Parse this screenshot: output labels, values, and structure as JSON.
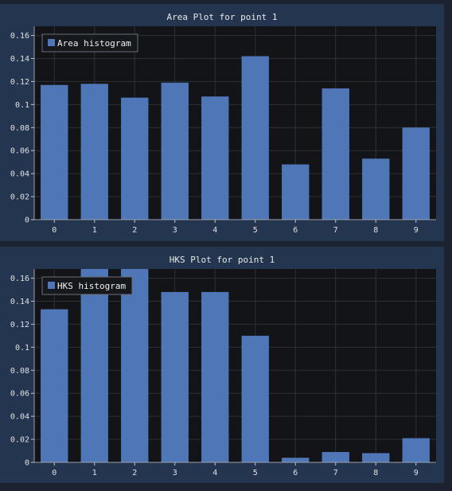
{
  "chart_data": [
    {
      "type": "bar",
      "title": "Area Plot for point 1",
      "categories": [
        "0",
        "1",
        "2",
        "3",
        "4",
        "5",
        "6",
        "7",
        "8",
        "9"
      ],
      "series": [
        {
          "name": "Area histogram",
          "values": [
            0.117,
            0.118,
            0.106,
            0.119,
            0.107,
            0.142,
            0.048,
            0.114,
            0.053,
            0.08
          ]
        }
      ],
      "ylim": [
        0,
        0.168
      ],
      "yticks": [
        "0",
        "0.02",
        "0.04",
        "0.06",
        "0.08",
        "0.1",
        "0.12",
        "0.14",
        "0.16"
      ],
      "grid": true,
      "legend_position": "top-left",
      "colors": {
        "bar": "#4f77b8",
        "plot_bg": "#121417",
        "panel_bg": "#243550",
        "grid": "#2c3038"
      }
    },
    {
      "type": "bar",
      "title": "HKS Plot for point 1",
      "categories": [
        "0",
        "1",
        "2",
        "3",
        "4",
        "5",
        "6",
        "7",
        "8",
        "9"
      ],
      "series": [
        {
          "name": "HKS histogram",
          "values": [
            0.133,
            0.168,
            0.168,
            0.148,
            0.148,
            0.11,
            0.004,
            0.009,
            0.008,
            0.021
          ]
        }
      ],
      "ylim": [
        0,
        0.168
      ],
      "yticks": [
        "0",
        "0.02",
        "0.04",
        "0.06",
        "0.08",
        "0.1",
        "0.12",
        "0.14",
        "0.16"
      ],
      "grid": true,
      "legend_position": "top-left",
      "colors": {
        "bar": "#4f77b8",
        "plot_bg": "#121417",
        "panel_bg": "#243550",
        "grid": "#2c3038"
      }
    }
  ]
}
